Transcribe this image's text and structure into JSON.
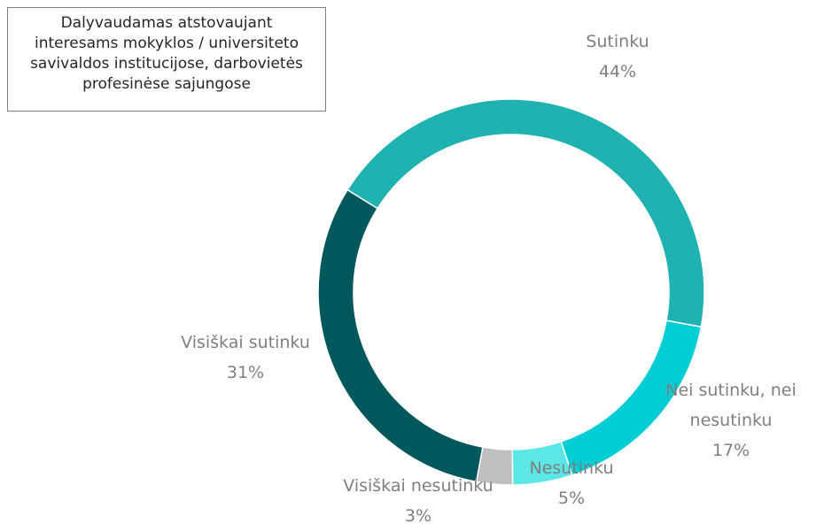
{
  "chart_data": {
    "type": "donut",
    "title": "Dalyvaudamas atstovaujant interesams mokyklos / universiteto savivaldos institucijose, darbovietės profesinėse sajungose",
    "categories": [
      "Sutinku",
      "Nei sutinku, nei nesutinku",
      "Nesutinku",
      "Visiškai nesutinku",
      "Visiškai sutinku"
    ],
    "values": [
      44,
      17,
      5,
      3,
      31
    ],
    "value_labels": [
      "44%",
      "17%",
      "5%",
      "3%",
      "31%"
    ],
    "colors": [
      "#20b2b0",
      "#00cdd4",
      "#5ce6e6",
      "#bfbfbf",
      "#00575c"
    ]
  }
}
